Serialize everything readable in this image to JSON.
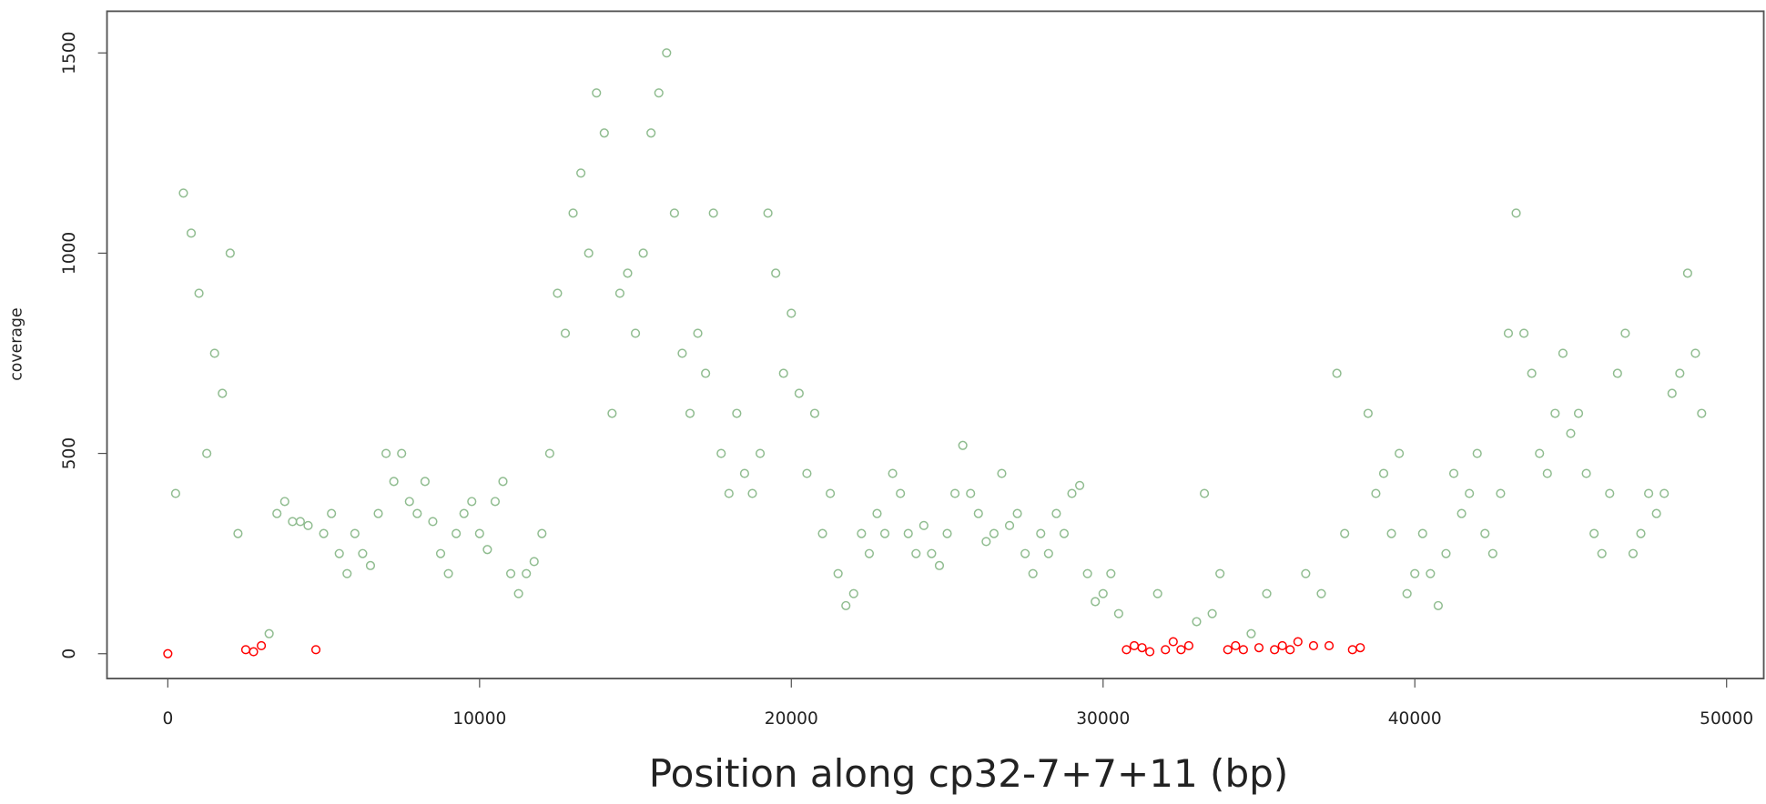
{
  "chart_data": {
    "type": "scatter",
    "xlabel": "Position along cp32-7+7+11 (bp)",
    "ylabel": "coverage",
    "xlim": [
      -1951,
      51192
    ],
    "ylim": [
      -62,
      1604
    ],
    "xticks": [
      0,
      10000,
      20000,
      30000,
      40000,
      50000
    ],
    "yticks": [
      0,
      500,
      1000,
      1500
    ],
    "series": [
      {
        "color": "#8fbc8f",
        "x": [
          250,
          500,
          750,
          1000,
          1250,
          1500,
          1750,
          2000,
          2250,
          3250,
          3500,
          3750,
          4000,
          4250,
          4500,
          5000,
          5250,
          5500,
          5750,
          6000,
          6250,
          6500,
          6750,
          7000,
          7250,
          7500,
          7750,
          8000,
          8250,
          8500,
          8750,
          9000,
          9250,
          9500,
          9750,
          10000,
          10250,
          10500,
          10750,
          11000,
          11250,
          11500,
          11750,
          12000,
          12250,
          12500,
          12750,
          13000,
          13250,
          13500,
          13750,
          14000,
          14250,
          14500,
          14750,
          15000,
          15250,
          15500,
          15750,
          16000,
          16250,
          16500,
          16750,
          17000,
          17250,
          17500,
          17750,
          18000,
          18250,
          18500,
          18750,
          19000,
          19250,
          19500,
          19750,
          20000,
          20250,
          20500,
          20750,
          21000,
          21250,
          21500,
          21750,
          22000,
          22250,
          22500,
          22750,
          23000,
          23250,
          23500,
          23750,
          24000,
          24250,
          24500,
          24750,
          25000,
          25250,
          25500,
          25750,
          26000,
          26250,
          26500,
          26750,
          27000,
          27250,
          27500,
          27750,
          28000,
          28250,
          28500,
          28750,
          29000,
          29250,
          29500,
          29750,
          30000,
          30250,
          30500,
          31750,
          33000,
          33250,
          33500,
          33750,
          34750,
          35250,
          36500,
          37000,
          37500,
          37750,
          38500,
          38750,
          39000,
          39250,
          39500,
          39750,
          40000,
          40250,
          40500,
          40750,
          41000,
          41250,
          41500,
          41750,
          42000,
          42250,
          42500,
          42750,
          43000,
          43250,
          43500,
          43750,
          44000,
          44250,
          44500,
          44750,
          45000,
          45250,
          45500,
          45750,
          46000,
          46250,
          46500,
          46750,
          47000,
          47250,
          47500,
          47750,
          48000,
          48250,
          48500,
          48750,
          49000,
          49200
        ],
        "values": [
          400,
          1150,
          1050,
          900,
          500,
          750,
          650,
          1000,
          300,
          50,
          350,
          380,
          330,
          330,
          320,
          300,
          350,
          250,
          200,
          300,
          250,
          220,
          350,
          500,
          430,
          500,
          380,
          350,
          430,
          330,
          250,
          200,
          300,
          350,
          380,
          300,
          260,
          380,
          430,
          200,
          150,
          200,
          230,
          300,
          500,
          900,
          800,
          1100,
          1200,
          1000,
          1400,
          1300,
          600,
          900,
          950,
          800,
          1000,
          1300,
          1400,
          1500,
          1100,
          750,
          600,
          800,
          700,
          1100,
          500,
          400,
          600,
          450,
          400,
          500,
          1100,
          950,
          700,
          850,
          650,
          450,
          600,
          300,
          400,
          200,
          120,
          150,
          300,
          250,
          350,
          300,
          450,
          400,
          300,
          250,
          320,
          250,
          220,
          300,
          400,
          520,
          400,
          350,
          280,
          300,
          450,
          320,
          350,
          250,
          200,
          300,
          250,
          350,
          300,
          400,
          420,
          200,
          130,
          150,
          200,
          100,
          150,
          80,
          400,
          100,
          200,
          50,
          150,
          200,
          150,
          700,
          300,
          600,
          400,
          450,
          300,
          500,
          150,
          200,
          300,
          200,
          120,
          250,
          450,
          350,
          400,
          500,
          300,
          250,
          400,
          800,
          1100,
          800,
          700,
          500,
          450,
          600,
          750,
          550,
          600,
          450,
          300,
          250,
          400,
          700,
          800,
          250,
          300,
          400,
          350,
          400,
          650,
          700,
          950,
          750,
          600
        ]
      },
      {
        "color": "#ff0000",
        "x": [
          0,
          2500,
          2750,
          3000,
          4750,
          30750,
          31000,
          31250,
          31500,
          32000,
          32250,
          32500,
          32750,
          34000,
          34250,
          34500,
          35000,
          35500,
          35750,
          36000,
          36250,
          36750,
          37250,
          38000,
          38250
        ],
        "values": [
          0,
          10,
          5,
          20,
          10,
          10,
          20,
          15,
          5,
          10,
          30,
          10,
          20,
          10,
          20,
          10,
          15,
          10,
          20,
          10,
          30,
          20,
          20,
          10,
          15
        ]
      }
    ]
  }
}
